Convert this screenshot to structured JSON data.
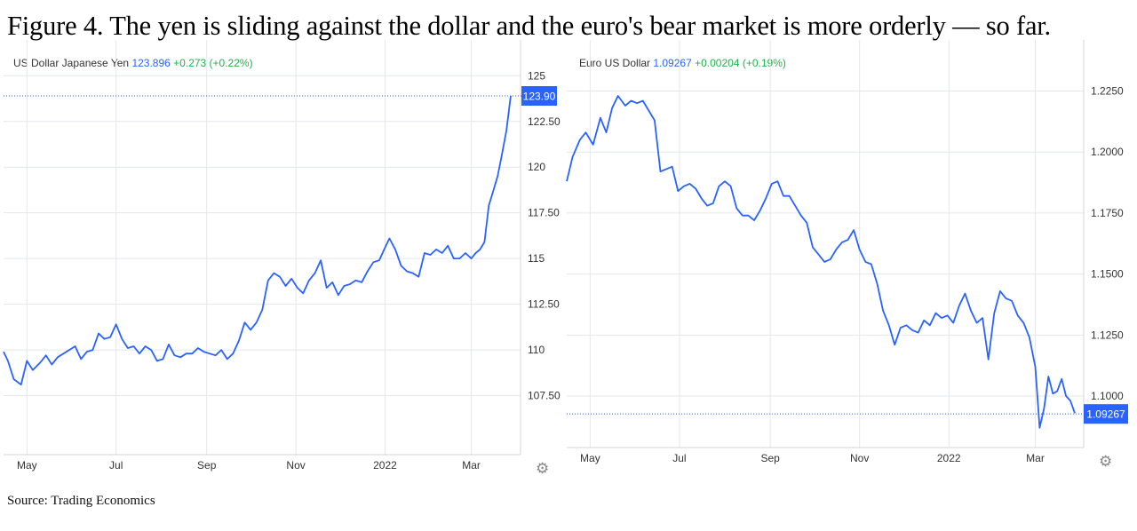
{
  "figure_title": "Figure 4. The yen is sliding against the dollar and the euro's bear market is more orderly — so far.",
  "source": "Source: Trading Economics",
  "colors": {
    "line": "#2962ff",
    "grid": "#e4e7eb",
    "axis_text": "#333333",
    "change_up": "#22b14c",
    "price_tag": "#2962ff"
  },
  "chart_data": [
    {
      "type": "line",
      "header": {
        "symbol": "US Dollar Japanese Yen",
        "price": "123.896",
        "change": "+0.273 (+0.22%)"
      },
      "price_tag": "123.90",
      "last_value": 123.896,
      "ylim": [
        105,
        125.5
      ],
      "yticks": [
        125,
        122.5,
        120,
        117.5,
        115,
        112.5,
        110,
        107.5
      ],
      "ytick_labels": [
        "125",
        "122.50",
        "120",
        "117.50",
        "115",
        "112.50",
        "110",
        "107.50"
      ],
      "xlim": [
        "2021-04-15",
        "2022-03-28"
      ],
      "xticks": [
        "2021-05-01",
        "2021-07-01",
        "2021-09-01",
        "2021-11-01",
        "2022-01-01",
        "2022-03-01"
      ],
      "xtick_labels": [
        "May",
        "Jul",
        "Sep",
        "Nov",
        "2022",
        "Mar"
      ],
      "grid": true,
      "series": [
        {
          "x": [
            "2021-04-15",
            "2021-04-18",
            "2021-04-22",
            "2021-04-27",
            "2021-05-01",
            "2021-05-05",
            "2021-05-10",
            "2021-05-14",
            "2021-05-18",
            "2021-05-22",
            "2021-05-26",
            "2021-05-30",
            "2021-06-03",
            "2021-06-07",
            "2021-06-11",
            "2021-06-15",
            "2021-06-19",
            "2021-06-23",
            "2021-06-27",
            "2021-07-01",
            "2021-07-05",
            "2021-07-09",
            "2021-07-13",
            "2021-07-17",
            "2021-07-21",
            "2021-07-25",
            "2021-07-29",
            "2021-08-02",
            "2021-08-06",
            "2021-08-10",
            "2021-08-14",
            "2021-08-18",
            "2021-08-22",
            "2021-08-26",
            "2021-08-30",
            "2021-09-03",
            "2021-09-07",
            "2021-09-11",
            "2021-09-15",
            "2021-09-19",
            "2021-09-23",
            "2021-09-27",
            "2021-10-01",
            "2021-10-05",
            "2021-10-09",
            "2021-10-13",
            "2021-10-17",
            "2021-10-21",
            "2021-10-25",
            "2021-10-29",
            "2021-11-02",
            "2021-11-06",
            "2021-11-10",
            "2021-11-14",
            "2021-11-18",
            "2021-11-22",
            "2021-11-26",
            "2021-11-30",
            "2021-12-04",
            "2021-12-08",
            "2021-12-12",
            "2021-12-16",
            "2021-12-20",
            "2021-12-24",
            "2021-12-28",
            "2022-01-01",
            "2022-01-04",
            "2022-01-08",
            "2022-01-12",
            "2022-01-16",
            "2022-01-20",
            "2022-01-24",
            "2022-01-28",
            "2022-02-01",
            "2022-02-05",
            "2022-02-09",
            "2022-02-13",
            "2022-02-17",
            "2022-02-21",
            "2022-02-25",
            "2022-03-01",
            "2022-03-04",
            "2022-03-07",
            "2022-03-10",
            "2022-03-13",
            "2022-03-16",
            "2022-03-19",
            "2022-03-22",
            "2022-03-25",
            "2022-03-28"
          ],
          "y": [
            109.9,
            109.4,
            108.4,
            108.1,
            109.4,
            108.9,
            109.3,
            109.7,
            109.2,
            109.6,
            109.8,
            110.0,
            110.2,
            109.5,
            109.9,
            110.0,
            110.9,
            110.6,
            110.7,
            111.4,
            110.6,
            110.1,
            110.2,
            109.8,
            110.2,
            110.0,
            109.4,
            109.5,
            110.3,
            109.7,
            109.6,
            109.8,
            109.8,
            110.1,
            109.9,
            109.8,
            109.7,
            110.0,
            109.5,
            109.8,
            110.5,
            111.5,
            111.1,
            111.5,
            112.2,
            113.8,
            114.2,
            114.0,
            113.5,
            113.9,
            113.4,
            113.1,
            113.8,
            114.2,
            114.9,
            113.4,
            113.7,
            113.0,
            113.5,
            113.6,
            113.8,
            113.7,
            114.3,
            114.8,
            114.9,
            115.6,
            116.1,
            115.5,
            114.6,
            114.3,
            114.2,
            114.0,
            115.3,
            115.2,
            115.5,
            115.3,
            115.7,
            115.0,
            115.0,
            115.3,
            115.0,
            115.3,
            115.5,
            115.9,
            117.9,
            118.7,
            119.5,
            120.7,
            122.0,
            123.9
          ]
        }
      ]
    },
    {
      "type": "line",
      "header": {
        "symbol": "Euro US Dollar",
        "price": "1.09267",
        "change": "+0.00204 (+0.19%)"
      },
      "price_tag": "1.09267",
      "last_value": 1.09267,
      "ylim": [
        1.08,
        1.235
      ],
      "yticks": [
        1.225,
        1.2,
        1.175,
        1.15,
        1.125,
        1.1
      ],
      "ytick_labels": [
        "1.2250",
        "1.2000",
        "1.1750",
        "1.1500",
        "1.1250",
        "1.1000"
      ],
      "xlim": [
        "2021-04-15",
        "2022-03-28"
      ],
      "xticks": [
        "2021-05-01",
        "2021-07-01",
        "2021-09-01",
        "2021-11-01",
        "2022-01-01",
        "2022-03-01"
      ],
      "xtick_labels": [
        "May",
        "Jul",
        "Sep",
        "Nov",
        "2022",
        "Mar"
      ],
      "grid": true,
      "series": [
        {
          "x": [
            "2021-04-15",
            "2021-04-19",
            "2021-04-24",
            "2021-04-28",
            "2021-05-03",
            "2021-05-08",
            "2021-05-12",
            "2021-05-16",
            "2021-05-20",
            "2021-05-25",
            "2021-05-29",
            "2021-06-02",
            "2021-06-06",
            "2021-06-10",
            "2021-06-14",
            "2021-06-18",
            "2021-06-22",
            "2021-06-26",
            "2021-06-30",
            "2021-07-04",
            "2021-07-08",
            "2021-07-12",
            "2021-07-16",
            "2021-07-20",
            "2021-07-24",
            "2021-07-28",
            "2021-08-01",
            "2021-08-05",
            "2021-08-09",
            "2021-08-13",
            "2021-08-17",
            "2021-08-21",
            "2021-08-25",
            "2021-08-29",
            "2021-09-02",
            "2021-09-06",
            "2021-09-10",
            "2021-09-14",
            "2021-09-18",
            "2021-09-22",
            "2021-09-26",
            "2021-09-30",
            "2021-10-04",
            "2021-10-08",
            "2021-10-12",
            "2021-10-16",
            "2021-10-20",
            "2021-10-24",
            "2021-10-28",
            "2021-11-01",
            "2021-11-05",
            "2021-11-09",
            "2021-11-13",
            "2021-11-17",
            "2021-11-21",
            "2021-11-25",
            "2021-11-29",
            "2021-12-03",
            "2021-12-07",
            "2021-12-11",
            "2021-12-15",
            "2021-12-19",
            "2021-12-23",
            "2021-12-27",
            "2021-12-31",
            "2022-01-04",
            "2022-01-08",
            "2022-01-12",
            "2022-01-16",
            "2022-01-20",
            "2022-01-24",
            "2022-01-28",
            "2022-02-01",
            "2022-02-05",
            "2022-02-09",
            "2022-02-13",
            "2022-02-17",
            "2022-02-21",
            "2022-02-25",
            "2022-03-01",
            "2022-03-04",
            "2022-03-07",
            "2022-03-10",
            "2022-03-13",
            "2022-03-16",
            "2022-03-19",
            "2022-03-22",
            "2022-03-25",
            "2022-03-28"
          ],
          "y": [
            1.188,
            1.198,
            1.205,
            1.208,
            1.203,
            1.214,
            1.208,
            1.218,
            1.223,
            1.219,
            1.221,
            1.22,
            1.221,
            1.217,
            1.213,
            1.192,
            1.193,
            1.194,
            1.184,
            1.186,
            1.187,
            1.185,
            1.181,
            1.178,
            1.179,
            1.186,
            1.188,
            1.186,
            1.177,
            1.174,
            1.174,
            1.172,
            1.176,
            1.181,
            1.187,
            1.188,
            1.182,
            1.182,
            1.178,
            1.174,
            1.171,
            1.161,
            1.158,
            1.155,
            1.156,
            1.16,
            1.163,
            1.164,
            1.168,
            1.16,
            1.155,
            1.154,
            1.146,
            1.135,
            1.129,
            1.121,
            1.128,
            1.129,
            1.127,
            1.126,
            1.131,
            1.129,
            1.134,
            1.132,
            1.133,
            1.13,
            1.137,
            1.142,
            1.135,
            1.13,
            1.132,
            1.115,
            1.134,
            1.143,
            1.14,
            1.139,
            1.133,
            1.13,
            1.124,
            1.112,
            1.087,
            1.095,
            1.108,
            1.101,
            1.102,
            1.107,
            1.1,
            1.098,
            1.093
          ]
        }
      ]
    }
  ]
}
